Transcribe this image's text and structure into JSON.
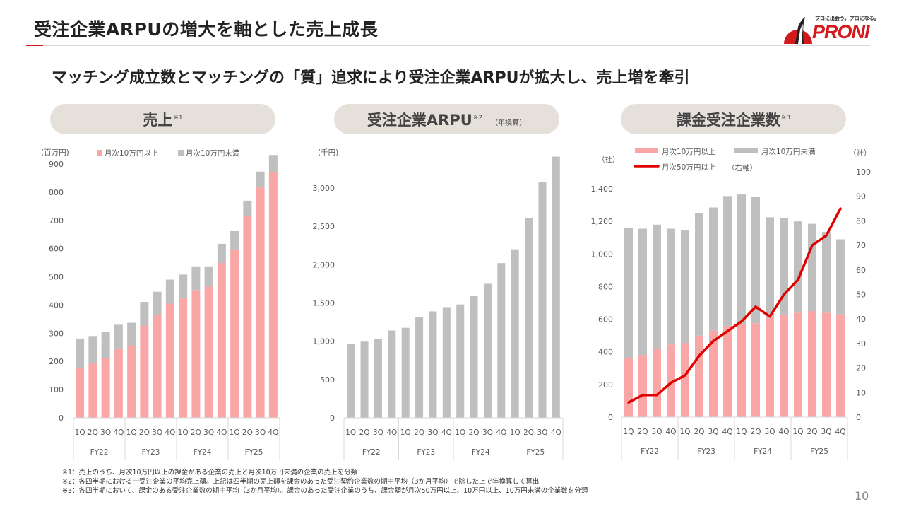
{
  "header": {
    "title": "受注企業ARPUの増大を軸とした売上成長",
    "subtitle": "マッチング成立数とマッチングの「質」追求により受注企業ARPUが拡大し、売上増を牽引",
    "logo_text": "PRONI",
    "logo_tagline": "プロに出会う。プロになる。"
  },
  "panels": {
    "sales": {
      "title": "売上",
      "note": "※1"
    },
    "arpu": {
      "title": "受注企業ARPU",
      "note": "※2",
      "sub": "（年換算）"
    },
    "customers": {
      "title": "課金受注企業数",
      "note": "※3"
    }
  },
  "colors": {
    "pink": "#f9a6a6",
    "gray": "#bfbfbf",
    "red": "#e00000",
    "accent": "#d3191c"
  },
  "chart_data": [
    {
      "type": "bar",
      "stacked": true,
      "title": "売上",
      "unit_label": "(百万円)",
      "quarters": [
        "1Q",
        "2Q",
        "3Q",
        "4Q",
        "1Q",
        "2Q",
        "3Q",
        "4Q",
        "1Q",
        "2Q",
        "3Q",
        "4Q",
        "1Q",
        "2Q",
        "3Q",
        "4Q"
      ],
      "years": [
        "FY22",
        "FY23",
        "FY24",
        "FY25"
      ],
      "series": [
        {
          "name": "月次10万円以上",
          "color": "#f9a6a6",
          "values": [
            178,
            192,
            212,
            246,
            257,
            327,
            364,
            405,
            423,
            453,
            465,
            549,
            597,
            715,
            817,
            870
          ]
        },
        {
          "name": "月次10万円未満",
          "color": "#bfbfbf",
          "values": [
            103,
            98,
            93,
            84,
            80,
            84,
            83,
            85,
            85,
            84,
            72,
            68,
            65,
            55,
            56,
            62
          ]
        }
      ],
      "yticks": [
        "0",
        "100",
        "200",
        "300",
        "400",
        "500",
        "600",
        "700",
        "800",
        "900"
      ],
      "ylim": [
        0,
        900
      ],
      "legend": "top"
    },
    {
      "type": "bar",
      "title": "受注企業ARPU（年換算）",
      "unit_label": "(千円)",
      "quarters": [
        "1Q",
        "2Q",
        "3Q",
        "4Q",
        "1Q",
        "2Q",
        "3Q",
        "4Q",
        "1Q",
        "2Q",
        "3Q",
        "4Q",
        "1Q",
        "2Q",
        "3Q",
        "4Q"
      ],
      "years": [
        "FY22",
        "FY23",
        "FY24",
        "FY25"
      ],
      "series": [
        {
          "name": "受注企業ARPU",
          "color": "#bfbfbf",
          "values": [
            960,
            995,
            1030,
            1140,
            1175,
            1310,
            1390,
            1445,
            1480,
            1590,
            1750,
            2020,
            2200,
            2610,
            3080,
            3410
          ]
        }
      ],
      "yticks": [
        "0",
        "500",
        "1,000",
        "1,500",
        "2,000",
        "2,500",
        "3,000"
      ],
      "ylim": [
        0,
        3000
      ]
    },
    {
      "type": "bar",
      "stacked": true,
      "title": "課金受注企業数",
      "unit_label_left": "（社）",
      "unit_label_right": "（社）",
      "quarters": [
        "1Q",
        "2Q",
        "3Q",
        "4Q",
        "1Q",
        "2Q",
        "3Q",
        "4Q",
        "1Q",
        "2Q",
        "3Q",
        "4Q",
        "1Q",
        "2Q",
        "3Q",
        "4Q"
      ],
      "years": [
        "FY22",
        "FY23",
        "FY24",
        "FY25"
      ],
      "series": [
        {
          "name": "月次10万円以上",
          "color": "#f9a6a6",
          "values": [
            360,
            380,
            420,
            445,
            455,
            500,
            530,
            560,
            570,
            575,
            610,
            630,
            640,
            650,
            640,
            630
          ]
        },
        {
          "name": "月次10万円未満",
          "color": "#bfbfbf",
          "values": [
            802,
            775,
            760,
            710,
            692,
            750,
            755,
            795,
            795,
            775,
            615,
            590,
            560,
            535,
            495,
            460
          ]
        }
      ],
      "line_series": {
        "name": "月次50万円以上",
        "axis_note": "（右軸）",
        "color": "#e00000",
        "values": [
          6,
          9,
          9,
          14,
          17,
          25,
          31,
          35,
          39,
          45,
          41,
          50,
          56,
          70,
          74,
          85
        ]
      },
      "yticks_left": [
        "0",
        "200",
        "400",
        "600",
        "800",
        "1,000",
        "1,200",
        "1,400"
      ],
      "ylim_left": [
        0,
        1400
      ],
      "yticks_right": [
        "0",
        "10",
        "20",
        "30",
        "40",
        "50",
        "60",
        "70",
        "80",
        "90",
        "100"
      ],
      "ylim_right": [
        0,
        100
      ],
      "legend": "top"
    }
  ],
  "footnotes": [
    "※1：売上のうち、月次10万円以上の課金がある企業の売上と月次10万円未満の企業の売上を分類",
    "※2：各四半期における一受注企業の平均売上額。上記は四半期の売上額を課金のあった受注契約企業数の期中平均（3か月平均）で除した上で年換算して算出",
    "※3：各四半期において、課金のある受注企業数の期中平均（3か月平均）。課金のあった受注企業のうち、課金額が月次50万円以上、10万円以上、10万円未満の企業数を分類"
  ],
  "page_number": "10"
}
